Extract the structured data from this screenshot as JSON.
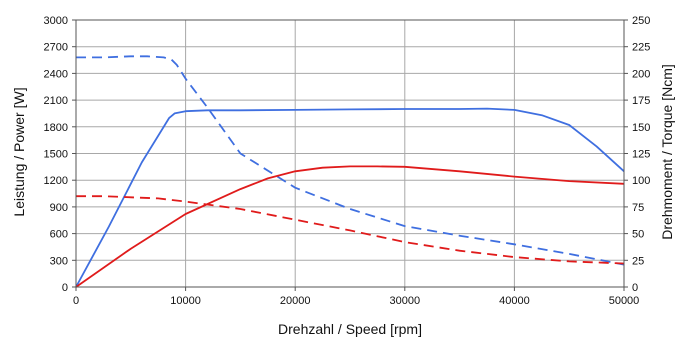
{
  "chart_data": {
    "type": "line",
    "title": "",
    "xlabel": "Drehzahl / Speed [rpm]",
    "ylabel_left": "Leistung / Power [W]",
    "ylabel_right": "Drehmoment / Torque [Ncm]",
    "xlim": [
      0,
      50000
    ],
    "ylim_left": [
      0,
      3000
    ],
    "ylim_right": [
      0,
      250
    ],
    "x_ticks": [
      "0",
      "10000",
      "20000",
      "30000",
      "40000",
      "50000"
    ],
    "y_left_ticks": [
      "0",
      "300",
      "600",
      "900",
      "1200",
      "1500",
      "1800",
      "2100",
      "2400",
      "2700",
      "3000"
    ],
    "y_right_ticks": [
      "0",
      "25",
      "50",
      "75",
      "100",
      "125",
      "150",
      "175",
      "200",
      "225",
      "250"
    ],
    "grid": true,
    "legend": "none",
    "series": [
      {
        "axis": "left",
        "style": "solid",
        "color": "#3f6fe0",
        "x": [
          0,
          3000,
          6000,
          8500,
          9000,
          10000,
          12000,
          15000,
          20000,
          25000,
          30000,
          35000,
          37500,
          40000,
          42500,
          45000,
          47500,
          50000
        ],
        "y": [
          0,
          680,
          1400,
          1900,
          1950,
          1975,
          1985,
          1985,
          1990,
          1995,
          2000,
          2000,
          2005,
          1990,
          1930,
          1820,
          1580,
          1300
        ]
      },
      {
        "axis": "right",
        "style": "dashed",
        "color": "#3f6fe0",
        "x": [
          0,
          2500,
          5000,
          6500,
          8000,
          8700,
          9200,
          10000,
          12000,
          15000,
          20000,
          25000,
          30000,
          35000,
          40000,
          45000,
          50000
        ],
        "y": [
          215,
          215,
          216,
          216,
          215,
          213,
          208,
          195,
          168,
          125,
          93,
          73,
          57,
          48,
          40,
          31,
          21
        ]
      },
      {
        "axis": "left",
        "style": "solid",
        "color": "#e01b1b",
        "x": [
          0,
          5000,
          10000,
          15000,
          17500,
          20000,
          22500,
          25000,
          27500,
          30000,
          35000,
          40000,
          45000,
          50000
        ],
        "y": [
          0,
          430,
          820,
          1100,
          1220,
          1300,
          1340,
          1355,
          1355,
          1350,
          1300,
          1240,
          1190,
          1160
        ]
      },
      {
        "axis": "right",
        "style": "dashed",
        "color": "#e01b1b",
        "x": [
          0,
          2500,
          5000,
          7500,
          10000,
          15000,
          20000,
          25000,
          30000,
          35000,
          40000,
          45000,
          50000
        ],
        "y": [
          85,
          85,
          84,
          83,
          80,
          73,
          63,
          53,
          42,
          34,
          28,
          24,
          22
        ]
      }
    ]
  }
}
